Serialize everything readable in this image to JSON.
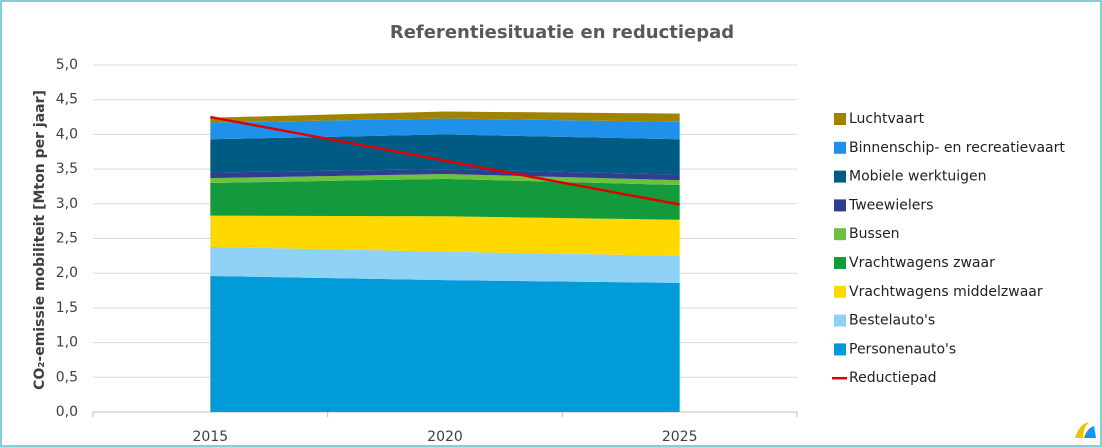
{
  "chart_data": {
    "type": "stacked_area",
    "title": "Referentiesituatie en reductiepad",
    "y_label": "CO₂-emissie mobiliteit [Mton per jaar]",
    "categories": [
      "2015",
      "2020",
      "2025"
    ],
    "ylim": [
      0,
      5
    ],
    "yticks": [
      {
        "value": 0,
        "label": "0,0"
      },
      {
        "value": 0.5,
        "label": "0,5"
      },
      {
        "value": 1,
        "label": "1,0"
      },
      {
        "value": 1.5,
        "label": "1,5"
      },
      {
        "value": 2,
        "label": "2,0"
      },
      {
        "value": 2.5,
        "label": "2,5"
      },
      {
        "value": 3,
        "label": "3,0"
      },
      {
        "value": 3.5,
        "label": "3,5"
      },
      {
        "value": 4,
        "label": "4,0"
      },
      {
        "value": 4.5,
        "label": "4,5"
      },
      {
        "value": 5,
        "label": "5,0"
      }
    ],
    "grid": true,
    "legend": "right",
    "series": [
      {
        "name": "Personenauto's",
        "color": "#009bd8",
        "values": [
          1.96,
          1.9,
          1.86
        ]
      },
      {
        "name": "Bestelauto's",
        "color": "#8fd2f6",
        "values": [
          0.42,
          0.41,
          0.39
        ]
      },
      {
        "name": "Vrachtwagens middelzwaar",
        "color": "#ffd800",
        "values": [
          0.45,
          0.51,
          0.52
        ]
      },
      {
        "name": "Vrachtwagens zwaar",
        "color": "#139a3c",
        "values": [
          0.47,
          0.54,
          0.5
        ]
      },
      {
        "name": "Bussen",
        "color": "#6cc23c",
        "values": [
          0.07,
          0.07,
          0.07
        ]
      },
      {
        "name": "Tweewielers",
        "color": "#2e3e90",
        "values": [
          0.08,
          0.07,
          0.08
        ]
      },
      {
        "name": "Mobiele werktuigen",
        "color": "#005b82",
        "values": [
          0.48,
          0.5,
          0.51
        ]
      },
      {
        "name": "Binnenschip- en recreatievaart",
        "color": "#1f91ea",
        "values": [
          0.24,
          0.23,
          0.25
        ]
      },
      {
        "name": "Luchtvaart",
        "color": "#a08300",
        "values": [
          0.07,
          0.1,
          0.12
        ]
      },
      {
        "name": "Reductiepad",
        "color": "#e00000",
        "type": "line",
        "values": [
          4.25,
          3.62,
          2.99
        ]
      }
    ]
  }
}
